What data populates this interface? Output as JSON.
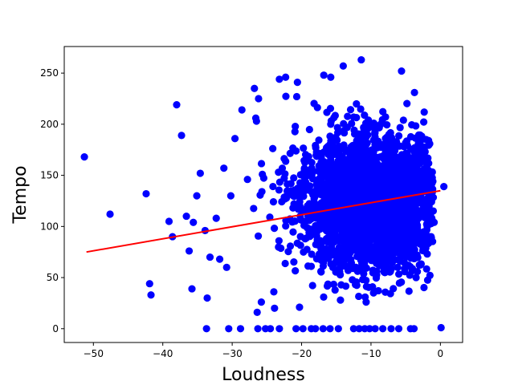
{
  "chart_data": {
    "type": "scatter",
    "title": "",
    "xlabel": "Loudness",
    "ylabel": "Tempo",
    "xlim": [
      -54.2,
      3.2
    ],
    "ylim": [
      -13.5,
      276
    ],
    "xticks": [
      -50,
      -40,
      -30,
      -20,
      -10,
      0
    ],
    "yticks": [
      0,
      50,
      100,
      150,
      200,
      250
    ],
    "grid": false,
    "legend": "none",
    "marker_color": "#0000ff",
    "line_color": "#ff0000",
    "series": [
      {
        "kind": "points",
        "points": [
          [
            -51.3,
            168
          ],
          [
            -47.6,
            112
          ],
          [
            -42.4,
            132
          ],
          [
            -41.9,
            44
          ],
          [
            -41.7,
            33
          ],
          [
            -39.1,
            105
          ],
          [
            -38.6,
            90
          ],
          [
            -38.0,
            219
          ],
          [
            -37.3,
            189
          ],
          [
            -36.6,
            110
          ],
          [
            -36.2,
            76
          ],
          [
            -35.8,
            39
          ],
          [
            -35.6,
            104
          ],
          [
            -35.1,
            130
          ],
          [
            -34.6,
            152
          ],
          [
            -33.9,
            96
          ],
          [
            -33.6,
            30
          ],
          [
            -33.2,
            70
          ],
          [
            -32.3,
            108
          ],
          [
            -31.8,
            68
          ],
          [
            -31.2,
            157
          ],
          [
            -30.8,
            60
          ],
          [
            -30.2,
            130
          ],
          [
            -29.6,
            186
          ],
          [
            -28.6,
            214
          ],
          [
            -27.8,
            146
          ],
          [
            -26.8,
            235
          ],
          [
            -26.6,
            206
          ],
          [
            -26.5,
            203
          ],
          [
            -26.2,
            225
          ],
          [
            -26.4,
            16
          ],
          [
            -25.8,
            26
          ],
          [
            -24.0,
            36
          ],
          [
            -23.9,
            20
          ],
          [
            -23.2,
            244
          ],
          [
            -22.3,
            246
          ],
          [
            -20.6,
            241
          ],
          [
            -20.7,
            227
          ],
          [
            -16.8,
            248
          ],
          [
            -15.8,
            246
          ],
          [
            -14.0,
            257
          ],
          [
            -11.4,
            263
          ],
          [
            -5.6,
            252
          ],
          [
            -10.7,
            26
          ],
          [
            -14.4,
            28
          ],
          [
            -20.3,
            21
          ],
          [
            -3.5,
            50
          ],
          [
            -4.6,
            62
          ],
          [
            -7.2,
            56
          ],
          [
            -2.2,
            173
          ],
          [
            -1.7,
            184
          ],
          [
            -1.9,
            100
          ],
          [
            0.5,
            139
          ],
          [
            -0.9,
            104
          ],
          [
            -2.6,
            146
          ],
          [
            -33.7,
            0
          ],
          [
            -30.5,
            0
          ],
          [
            -28.8,
            0
          ],
          [
            -26.3,
            0
          ],
          [
            -25.2,
            0
          ],
          [
            -23.2,
            0
          ],
          [
            -20.8,
            0
          ],
          [
            -19.8,
            0
          ],
          [
            -18.6,
            0
          ],
          [
            -16.9,
            0
          ],
          [
            -15.9,
            0
          ],
          [
            -14.7,
            0
          ],
          [
            -12.5,
            0
          ],
          [
            -11.7,
            0
          ],
          [
            -10.2,
            0
          ],
          [
            -9.4,
            0
          ],
          [
            -8.3,
            0
          ],
          [
            -7.1,
            0
          ],
          [
            -6.0,
            0
          ],
          [
            -4.3,
            0
          ],
          [
            -3.8,
            0
          ],
          [
            0.1,
            1
          ],
          [
            -10.9,
            0
          ],
          [
            -18.0,
            0
          ],
          [
            -24.5,
            0
          ]
        ]
      },
      {
        "kind": "line",
        "points": [
          [
            -51.0,
            75
          ],
          [
            0.0,
            135
          ]
        ]
      }
    ]
  }
}
